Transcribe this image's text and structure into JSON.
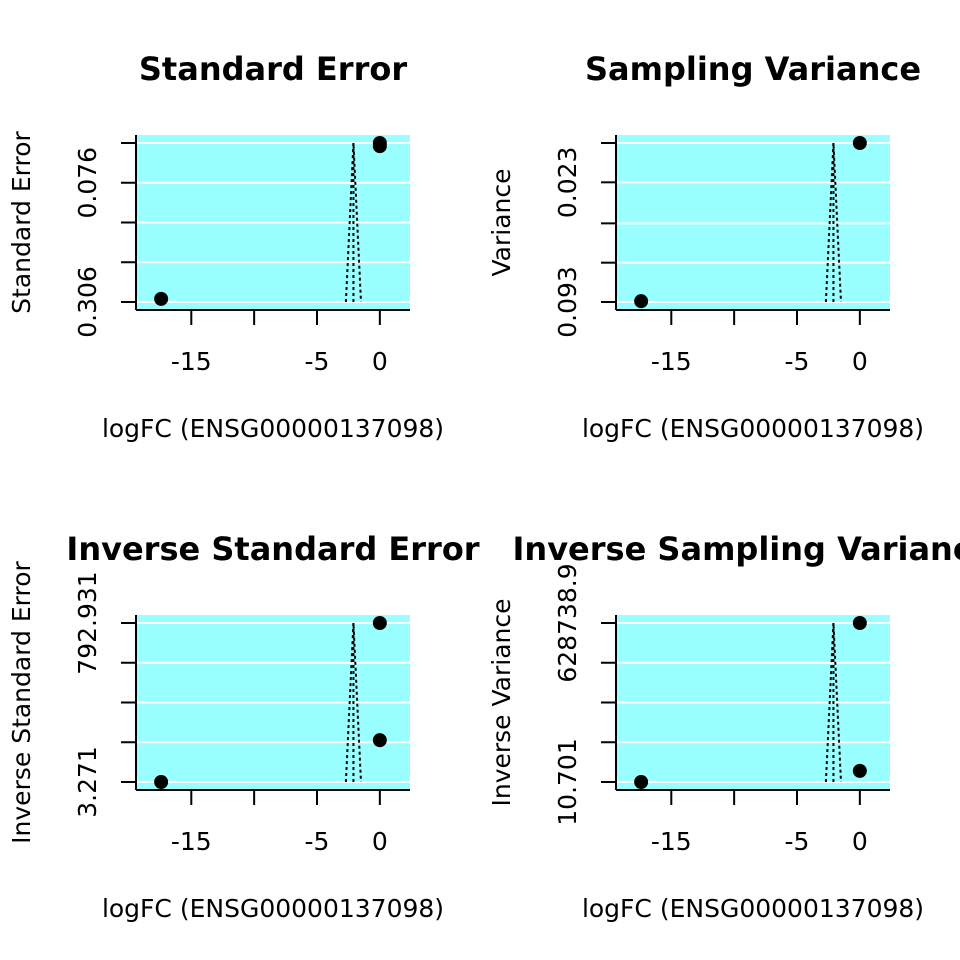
{
  "colors": {
    "panel_bg": "#99ffff",
    "grid": "#ffffff",
    "points": "#000000",
    "axis": "#000000"
  },
  "chart_data": [
    {
      "type": "scatter",
      "title": "Standard Error",
      "xlabel": "logFC (ENSG00000137098)",
      "ylabel": "Standard Error",
      "x_ticks": [
        -15,
        -10,
        -5,
        0
      ],
      "x_tick_labels": [
        "-15",
        "",
        "-5",
        "0"
      ],
      "xlim": [
        -19.4,
        2.4
      ],
      "y_ticks": [
        0,
        0.0765,
        0.153,
        0.2295,
        0.306
      ],
      "y_tick_labels": [
        "",
        "0.076",
        "",
        "",
        "0.306"
      ],
      "ylim": [
        0,
        0.306
      ],
      "y_reversed": true,
      "grid": true,
      "points": [
        {
          "x": -17.4,
          "y": 0.3
        },
        {
          "x": 0.0,
          "y": 0.0
        },
        {
          "x": 0.0,
          "y": 0.006
        }
      ],
      "funnel": {
        "center": -2.1,
        "top": 0.0,
        "bottom": 0.306,
        "half_width_bottom": 0.6
      }
    },
    {
      "type": "scatter",
      "title": "Sampling Variance",
      "xlabel": "logFC (ENSG00000137098)",
      "ylabel": "Variance",
      "x_ticks": [
        -15,
        -10,
        -5,
        0
      ],
      "x_tick_labels": [
        "-15",
        "",
        "-5",
        "0"
      ],
      "xlim": [
        -19.4,
        2.4
      ],
      "y_ticks": [
        0,
        0.023,
        0.047,
        0.07,
        0.093
      ],
      "y_tick_labels": [
        "",
        "0.023",
        "",
        "",
        "0.093"
      ],
      "ylim": [
        0,
        0.093
      ],
      "y_reversed": true,
      "grid": true,
      "points": [
        {
          "x": -17.4,
          "y": 0.0925
        },
        {
          "x": 0.0,
          "y": 0.0
        }
      ],
      "funnel": {
        "center": -2.1,
        "top": 0.0,
        "bottom": 0.093,
        "half_width_bottom": 0.6
      }
    },
    {
      "type": "scatter",
      "title": "Inverse Standard Error",
      "xlabel": "logFC (ENSG00000137098)",
      "ylabel": "Inverse Standard Error",
      "x_ticks": [
        -15,
        -10,
        -5,
        0
      ],
      "x_tick_labels": [
        "-15",
        "",
        "-5",
        "0"
      ],
      "xlim": [
        -19.4,
        2.4
      ],
      "y_ticks": [
        3.271,
        200.686,
        398.101,
        595.516,
        792.931
      ],
      "y_tick_labels": [
        "3.271",
        "",
        "",
        "",
        "792.931"
      ],
      "ylim": [
        3.271,
        792.931
      ],
      "y_reversed": false,
      "grid": true,
      "points": [
        {
          "x": -17.4,
          "y": 3.271
        },
        {
          "x": 0.0,
          "y": 792.931
        },
        {
          "x": 0.0,
          "y": 211.0
        }
      ],
      "funnel": {
        "center": -2.1,
        "top": 792.931,
        "bottom": 3.271,
        "half_width_bottom": 0.6
      }
    },
    {
      "type": "scatter",
      "title": "Inverse Sampling Variance",
      "xlabel": "logFC (ENSG00000137098)",
      "ylabel": "Inverse Variance",
      "x_ticks": [
        -15,
        -10,
        -5,
        0
      ],
      "x_tick_labels": [
        "-15",
        "",
        "-5",
        "0"
      ],
      "xlim": [
        -19.4,
        2.4
      ],
      "y_ticks": [
        10.701,
        157192.7,
        314374.8,
        471556.9,
        628738.9
      ],
      "y_tick_labels": [
        "10.701",
        "",
        "",
        "",
        "628738.9"
      ],
      "ylim": [
        10.701,
        628738.9
      ],
      "y_reversed": false,
      "grid": true,
      "points": [
        {
          "x": -17.4,
          "y": 10.701
        },
        {
          "x": 0.0,
          "y": 628738.9
        },
        {
          "x": 0.0,
          "y": 44000
        }
      ],
      "funnel": {
        "center": -2.1,
        "top": 628738.9,
        "bottom": 10.701,
        "half_width_bottom": 0.6
      }
    }
  ]
}
